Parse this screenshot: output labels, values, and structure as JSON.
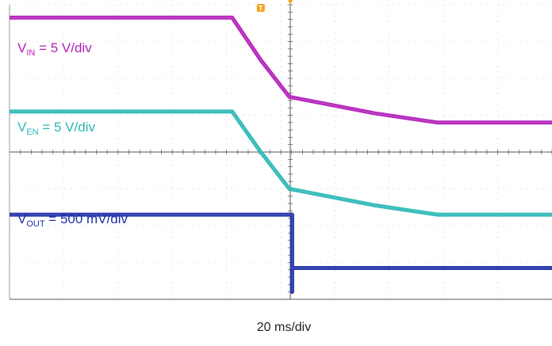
{
  "chart_data": {
    "type": "line",
    "x_units": "ms",
    "y_units": "div",
    "xlim": [
      -60,
      35
    ],
    "ylim": [
      0,
      8
    ],
    "grid": true,
    "xlabel": "20 ms/div",
    "trigger_marker": "T",
    "series": [
      {
        "name": "VIN = 5 V/div",
        "label_main": "V",
        "label_sub": "IN",
        "label_tail": " = 5 V/div",
        "color": "#b21fb8",
        "x": [
          -60,
          -21,
          -16,
          -11,
          4,
          15,
          35
        ],
        "y": [
          7.65,
          7.65,
          6.5,
          5.5,
          5.05,
          4.8,
          4.8
        ]
      },
      {
        "name": "VEN = 5 V/div",
        "label_main": "V",
        "label_sub": "EN",
        "label_tail": " = 5 V/div",
        "color": "#2ab7b5",
        "x": [
          -60,
          -21,
          -16,
          -11,
          4,
          15,
          35
        ],
        "y": [
          5.1,
          5.1,
          4.0,
          3.0,
          2.55,
          2.3,
          2.3
        ]
      },
      {
        "name": "VOUT = 500 mV/div",
        "label_main": "V",
        "label_sub": "OUT",
        "label_tail": " = 500 mV/div",
        "color": "#1c2fa8",
        "x": [
          -60,
          -10.5,
          -10.5,
          -10.5,
          35
        ],
        "y": [
          2.3,
          2.3,
          0.2,
          0.85,
          0.85
        ]
      }
    ]
  }
}
